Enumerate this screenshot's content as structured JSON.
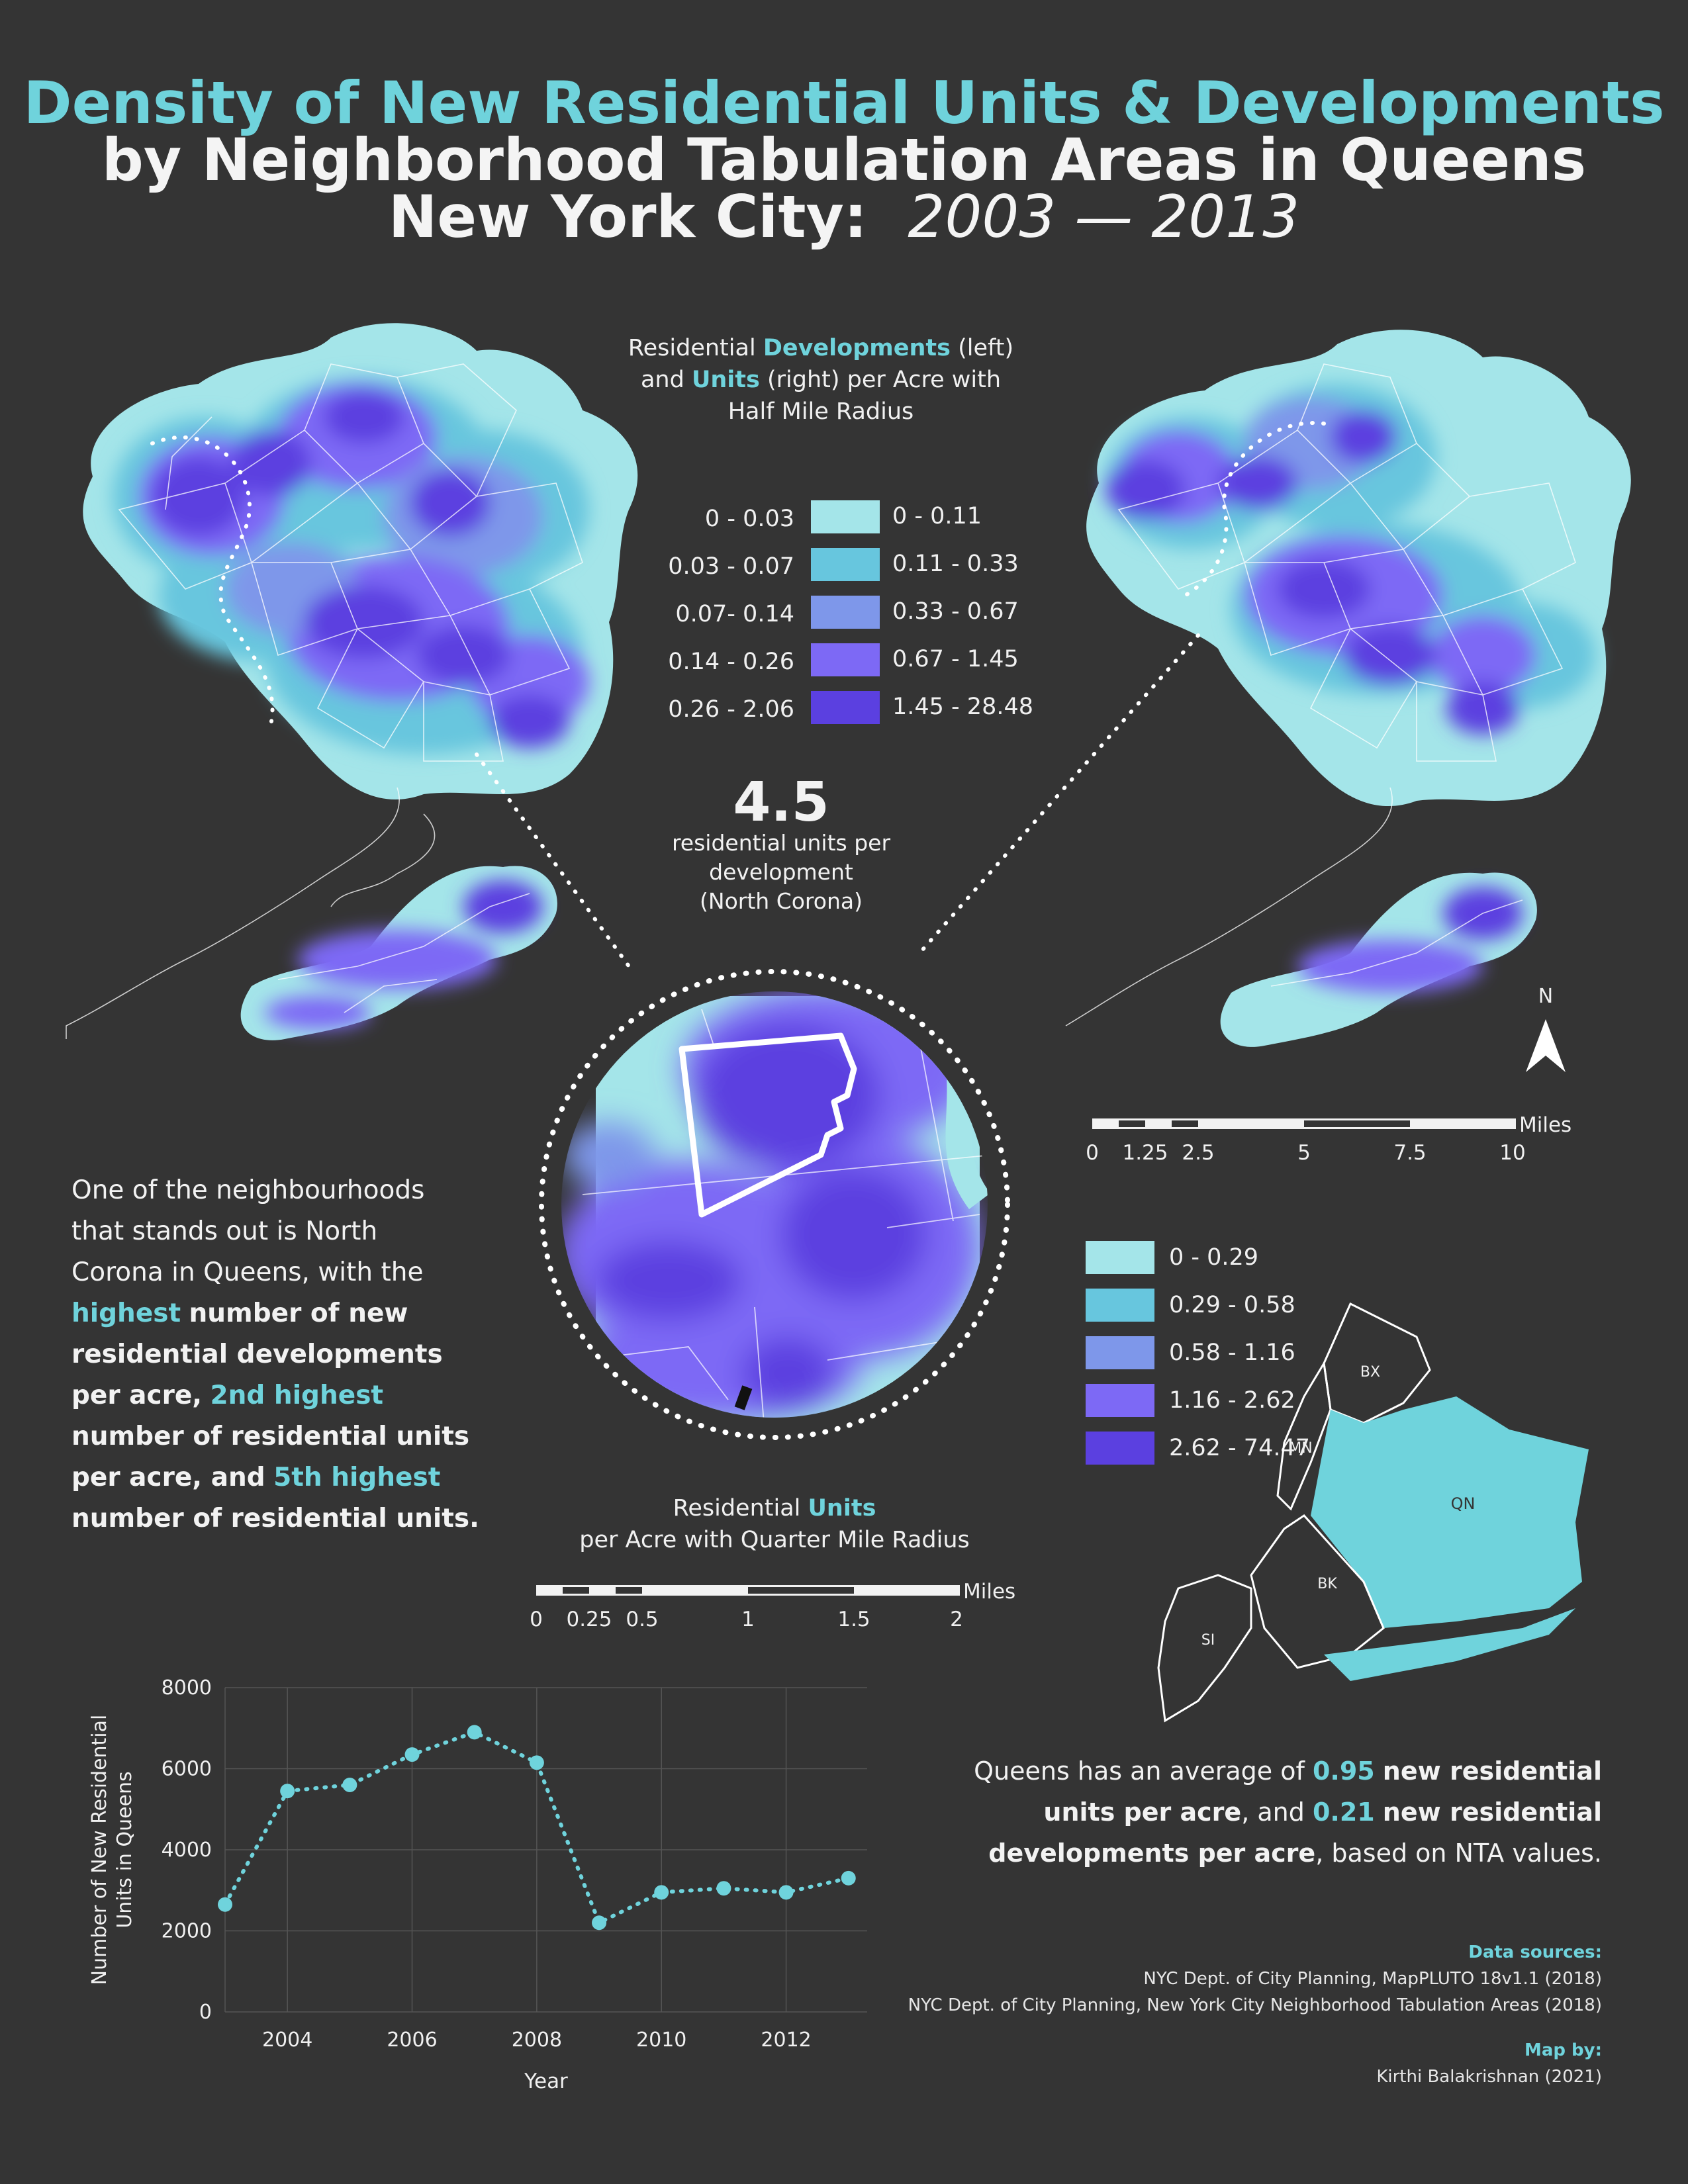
{
  "title": {
    "line1": "Density of New Residential Units & Developments",
    "line2": "by Neighborhood Tabulation Areas in Queens",
    "line3_prefix": "New York City:",
    "line3_years": "2003 — 2013"
  },
  "top_legend": {
    "title_a": "Residential",
    "title_b": "Developments",
    "title_c": "(left)",
    "title_d": "and",
    "title_e": "Units",
    "title_f": "(right) per Acre with",
    "title_g": "Half Mile Radius",
    "developments_bins": [
      "0 - 0.03",
      "0.03 - 0.07",
      "0.07- 0.14",
      "0.14 - 0.26",
      "0.26 - 2.06"
    ],
    "units_bins": [
      "0 - 0.11",
      "0.11 - 0.33",
      "0.33 - 0.67",
      "0.67 - 1.45",
      "1.45 - 28.48"
    ],
    "colors": [
      "#a4e5e9",
      "#67c6de",
      "#7e97ea",
      "#7d69f5",
      "#5b40e0"
    ]
  },
  "callout": {
    "value": "4.5",
    "line1": "residential units per",
    "line2": "development",
    "line3": "(North Corona)"
  },
  "inset_legend": {
    "bins": [
      "0 - 0.29",
      "0.29 - 0.58",
      "0.58 - 1.16",
      "1.16 - 2.62",
      "2.62 - 74.47"
    ],
    "title_a": "Residential",
    "title_b": "Units",
    "title_c": "per Acre with Quarter Mile Radius"
  },
  "scale_main": {
    "unit": "Miles",
    "ticks": [
      "0",
      "1.25",
      "2.5",
      "5",
      "7.5",
      "10"
    ]
  },
  "scale_inset": {
    "unit": "Miles",
    "ticks": [
      "0",
      "0.25",
      "0.5",
      "1",
      "1.5",
      "2"
    ]
  },
  "north_label": "N",
  "boroughs": [
    "BX",
    "MN",
    "QN",
    "BK",
    "SI"
  ],
  "story": {
    "p1": "One of the neighbourhoods",
    "p2": "that stands out is North",
    "p3": "Corona in Queens, with the",
    "p4a": "highest",
    "p4b": "number of new",
    "p5": "residential developments",
    "p6a": "per acre,",
    "p6b": "2nd highest",
    "p7": "number of residential units",
    "p8a": "per acre, and",
    "p8b": "5th highest",
    "p9": "number of residential units."
  },
  "summary": {
    "a": "Queens has an average of",
    "b": "0.95",
    "c": "new residential",
    "d": "units per acre",
    "e": ", and",
    "f": "0.21",
    "g": "new residential",
    "h": "developments per acre",
    "i": ", based on NTA values."
  },
  "sources": {
    "label": "Data sources:",
    "line1": "NYC Dept. of City Planning, MapPLUTO 18v1.1 (2018)",
    "line2": "NYC Dept. of City Planning, New York City Neighborhood Tabulation Areas (2018)",
    "map_label": "Map by:",
    "author": "Kirthi Balakrishnan (2021)"
  },
  "chart_data": {
    "type": "line",
    "x": [
      2003,
      2004,
      2005,
      2006,
      2007,
      2008,
      2009,
      2010,
      2011,
      2012,
      2013
    ],
    "series": [
      {
        "values": [
          2650,
          5450,
          5600,
          6350,
          6900,
          6150,
          2200,
          2950,
          3050,
          2950,
          3300
        ]
      }
    ],
    "xlabel": "Year",
    "ylabel_line1": "Number of New Residential",
    "ylabel_line2": "Units in Queens",
    "ylim": [
      0,
      8000
    ],
    "yticks": [
      "0",
      "2000",
      "4000",
      "6000",
      "8000"
    ],
    "xticks": [
      "2004",
      "2006",
      "2008",
      "2010",
      "2012"
    ],
    "xtick_values": [
      2004,
      2006,
      2008,
      2010,
      2012
    ],
    "xlim": [
      2003,
      2013.3
    ],
    "grid": true,
    "color": "#6fd3dc"
  }
}
